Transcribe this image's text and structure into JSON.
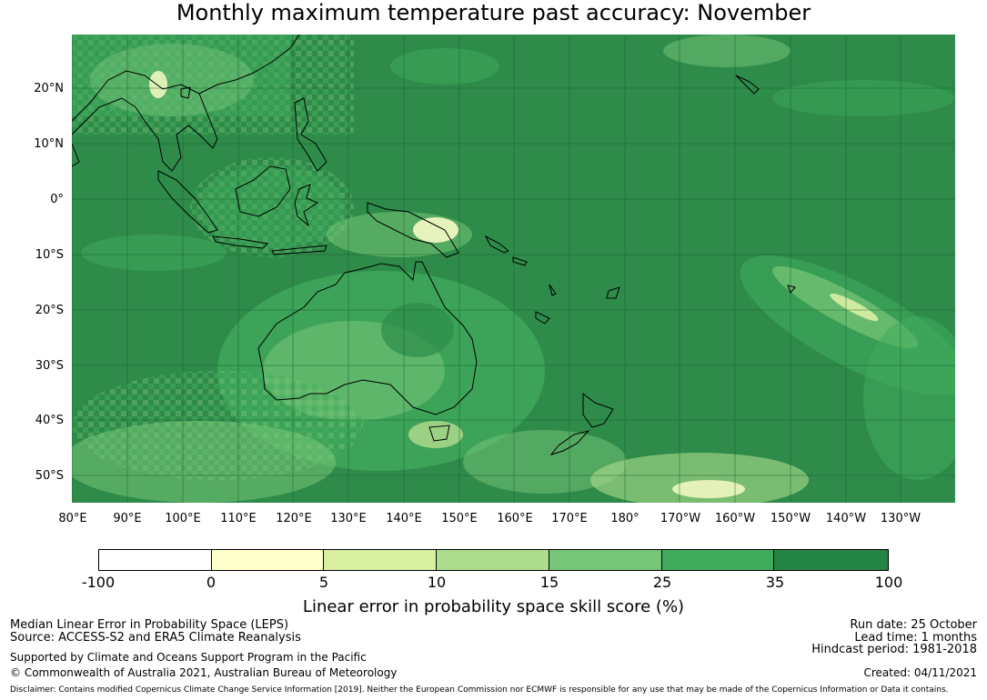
{
  "title": "Monthly maximum temperature past accuracy: November",
  "map": {
    "region": "Western and Central Pacific",
    "lat_labels": [
      "20°N",
      "10°N",
      "0°",
      "10°S",
      "20°S",
      "30°S",
      "40°S",
      "50°S"
    ],
    "lon_labels": [
      "80°E",
      "90°E",
      "100°E",
      "110°E",
      "120°E",
      "130°E",
      "140°E",
      "150°E",
      "160°E",
      "170°E",
      "180°",
      "170°W",
      "160°W",
      "150°W",
      "140°W",
      "130°W"
    ]
  },
  "colorbar": {
    "ticks": [
      "-100",
      "0",
      "5",
      "10",
      "15",
      "25",
      "35",
      "100"
    ],
    "colors": [
      "#ffffff",
      "#ffffcc",
      "#d9f0a3",
      "#addd8e",
      "#78c679",
      "#41ab5d",
      "#238443"
    ],
    "label": "Linear error in probability space skill score (%)"
  },
  "footer": {
    "line1": "Median Linear Error in Probability Space (LEPS)",
    "line2": "Source: ACCESS-S2 and ERA5 Climate Reanalysis",
    "line3": "Supported by Climate and Oceans Support Program in the Pacific",
    "line4": "© Commonwealth of Australia 2021, Australian Bureau of Meteorology",
    "run_date": "Run date: 25 October",
    "lead_time": "Lead time: 1 months",
    "hindcast": "Hindcast period: 1981-2018",
    "created": "Created: 04/11/2021",
    "disclaimer": "Disclaimer: Contains modified Copernicus Climate Change Service Information [2019]. Neither the European Commission nor ECMWF is responsible for any use that may be made of the Copernicus Information or Data it contains."
  }
}
